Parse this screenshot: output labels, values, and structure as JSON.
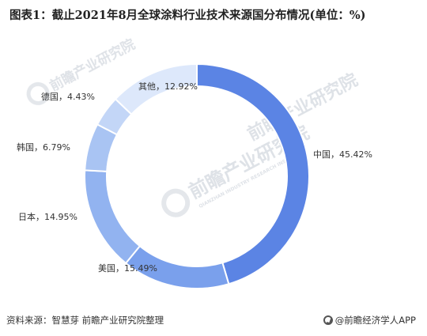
{
  "title": "图表1：截止2021年8月全球涂料行业技术来源国分布情况(单位：%)",
  "footer": {
    "source": "资料来源：智慧芽 前瞻产业研究院整理",
    "brand": "@前瞻经济学人APP"
  },
  "watermark": {
    "text_cn": "前瞻产业研究院",
    "text_en": "QIANZHAN INDUSTRY RESEARCH INSTITUTE"
  },
  "colors": {
    "中国": "#5b84e4",
    "美国": "#7aa0ec",
    "日本": "#92b3f0",
    "韩国": "#a9c4f3",
    "德国": "#c3d6f7",
    "其他": "#dde8fb"
  },
  "chart_data": {
    "type": "pie",
    "style": "donut",
    "title": "图表1：截止2021年8月全球涂料行业技术来源国分布情况(单位：%)",
    "unit": "%",
    "categories": [
      "中国",
      "美国",
      "日本",
      "韩国",
      "德国",
      "其他"
    ],
    "values": [
      45.42,
      15.49,
      14.95,
      6.79,
      4.43,
      12.92
    ],
    "labels": [
      "中国，45.42%",
      "美国，15.49%",
      "日本，14.95%",
      "韩国，6.79%",
      "德国，4.43%",
      "其他，12.92%"
    ],
    "legend": "none"
  }
}
